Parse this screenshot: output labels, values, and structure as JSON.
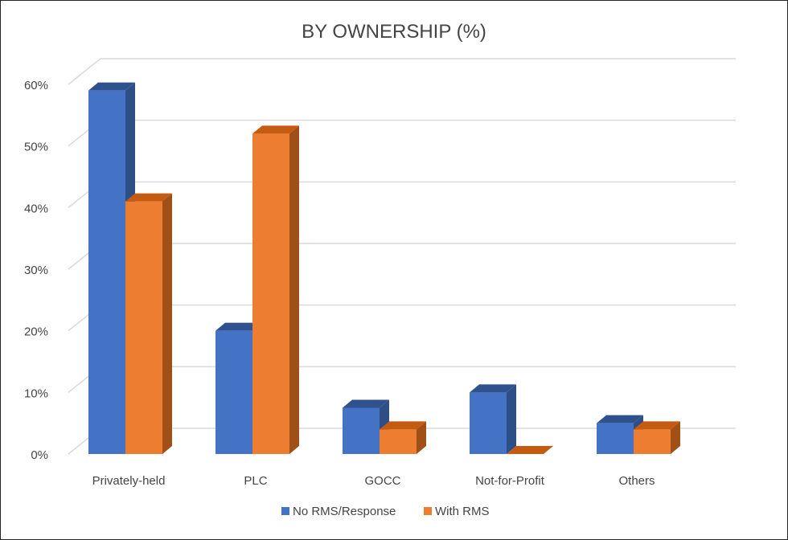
{
  "chart_data": {
    "type": "bar",
    "title": "BY OWNERSHIP (%)",
    "categories": [
      "Privately-held",
      "PLC",
      "GOCC",
      "Not-for-Profit",
      "Others"
    ],
    "series": [
      {
        "name": "No RMS/Response",
        "values": [
          59,
          20,
          7.5,
          10,
          5
        ],
        "color": "#4472C4",
        "top_color": "#2F528F",
        "side_color": "#2E4F85"
      },
      {
        "name": "With RMS",
        "values": [
          41,
          52,
          4,
          0,
          4
        ],
        "color": "#ED7D31",
        "top_color": "#C55A11",
        "side_color": "#A04F17"
      }
    ],
    "yticks": [
      "0%",
      "10%",
      "20%",
      "30%",
      "40%",
      "50%",
      "60%"
    ],
    "ylim": [
      0,
      60
    ],
    "xlabel": "",
    "ylabel": "",
    "grid": true,
    "legend": "bottom",
    "style": "3d-clustered-column"
  }
}
